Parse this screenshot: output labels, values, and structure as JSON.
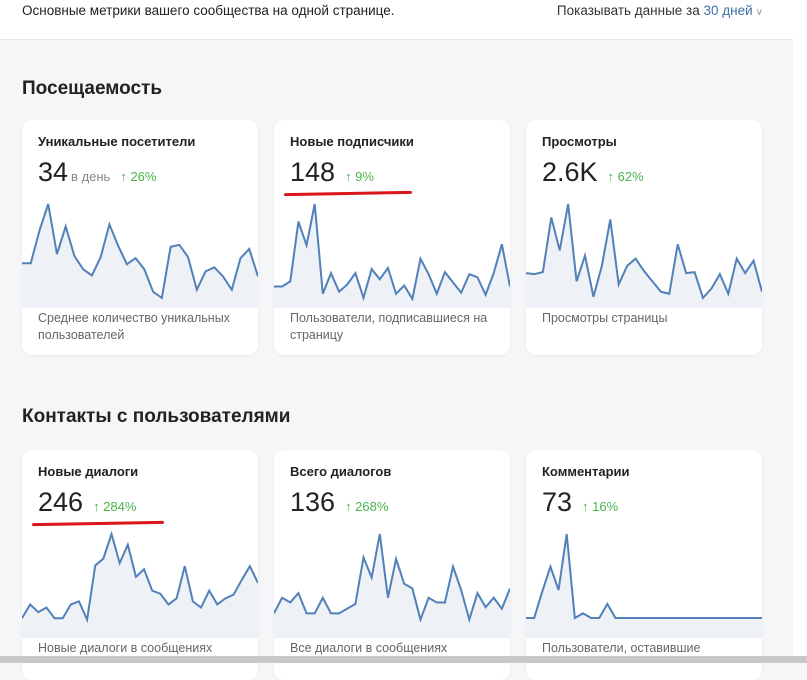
{
  "header": {
    "subtitle": "Основные метрики вашего сообщества на одной странице.",
    "period_label": "Показывать данные за",
    "period_value": "30 дней"
  },
  "colors": {
    "line": "#5181b8",
    "fill": "#eef1f6",
    "positive": "#4bb34b",
    "annotation": "#d8161b",
    "accent": "#3f6fa8"
  },
  "sections": [
    {
      "title": "Посещаемость",
      "cards": [
        {
          "title": "Уникальные посетители",
          "value": "34",
          "unit": "в день",
          "delta": "↑ 26%",
          "desc": "Среднее количество уникальных пользователей",
          "underlined": false,
          "series": [
            38,
            38,
            70,
            96,
            47,
            74,
            45,
            32,
            26,
            44,
            76,
            55,
            37,
            43,
            32,
            10,
            4,
            54,
            56,
            44,
            12,
            30,
            34,
            25,
            12,
            43,
            52,
            25
          ]
        },
        {
          "title": "Новые подписчики",
          "value": "148",
          "unit": "",
          "delta": "↑ 9%",
          "desc": "Пользователи, подписавшиеся на страницу",
          "underlined": true,
          "series": [
            15,
            15,
            20,
            78,
            55,
            95,
            8,
            28,
            10,
            17,
            28,
            4,
            32,
            22,
            33,
            8,
            16,
            3,
            42,
            27,
            8,
            29,
            19,
            9,
            27,
            24,
            7,
            28,
            56,
            15
          ]
        },
        {
          "title": "Просмотры",
          "value": "2.6K",
          "unit": "",
          "delta": "↑ 62%",
          "desc": "Просмотры страницы",
          "underlined": false,
          "series": [
            28,
            27,
            29,
            82,
            50,
            95,
            20,
            45,
            5,
            35,
            80,
            17,
            35,
            42,
            30,
            20,
            10,
            8,
            56,
            28,
            29,
            4,
            13,
            27,
            8,
            42,
            28,
            40,
            10
          ]
        }
      ]
    },
    {
      "title": "Контакты с пользователями",
      "cards": [
        {
          "title": "Новые диалоги",
          "value": "246",
          "unit": "",
          "delta": "↑ 284%",
          "desc": "Новые диалоги в сообщениях",
          "underlined": true,
          "series": [
            45,
            90,
            65,
            80,
            45,
            45,
            90,
            100,
            40,
            217,
            240,
            320,
            225,
            285,
            180,
            205,
            135,
            125,
            90,
            110,
            215,
            100,
            80,
            135,
            90,
            110,
            122,
            170,
            215,
            160
          ]
        },
        {
          "title": "Всего диалогов",
          "value": "136",
          "unit": "",
          "delta": "↑ 268%",
          "desc": "Все диалоги в сообщениях",
          "underlined": false,
          "series": [
            60,
            110,
            95,
            125,
            60,
            60,
            110,
            60,
            60,
            75,
            90,
            240,
            175,
            315,
            110,
            235,
            155,
            140,
            40,
            110,
            95,
            95,
            210,
            135,
            40,
            125,
            80,
            110,
            75,
            140
          ]
        },
        {
          "title": "Комментарии",
          "value": "73",
          "unit": "",
          "delta": "↑ 16%",
          "desc": "Пользователи, оставившие",
          "underlined": false,
          "series": [
            45,
            45,
            130,
            210,
            135,
            315,
            45,
            60,
            45,
            45,
            90,
            45,
            45,
            45,
            45,
            45,
            45,
            45,
            45,
            45,
            45,
            45,
            45,
            45,
            45,
            45,
            45,
            45,
            45,
            45
          ]
        }
      ]
    }
  ]
}
